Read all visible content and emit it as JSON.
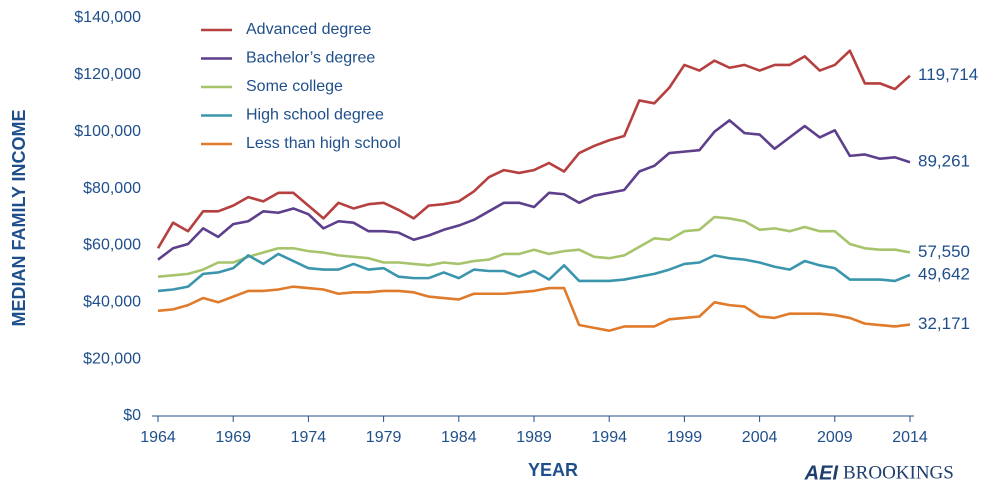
{
  "chart_data": {
    "type": "line",
    "x_label": "YEAR",
    "y_label": "MEDIAN FAMILY INCOME",
    "logos": [
      "AEI",
      "BROOKINGS"
    ],
    "x": [
      1964,
      1965,
      1966,
      1967,
      1968,
      1969,
      1970,
      1971,
      1972,
      1973,
      1974,
      1975,
      1976,
      1977,
      1978,
      1979,
      1980,
      1981,
      1982,
      1983,
      1984,
      1985,
      1986,
      1987,
      1988,
      1989,
      1990,
      1991,
      1992,
      1993,
      1994,
      1995,
      1996,
      1997,
      1998,
      1999,
      2000,
      2001,
      2002,
      2003,
      2004,
      2005,
      2006,
      2007,
      2008,
      2009,
      2010,
      2011,
      2012,
      2013,
      2014
    ],
    "xlim": [
      1964,
      2014
    ],
    "xticks": [
      1964,
      1969,
      1974,
      1979,
      1984,
      1989,
      1994,
      1999,
      2004,
      2009,
      2014
    ],
    "ylim": [
      0,
      140000
    ],
    "yticks": [
      {
        "value": 0,
        "label": "$0"
      },
      {
        "value": 20000,
        "label": "$20,000"
      },
      {
        "value": 40000,
        "label": "$40,000"
      },
      {
        "value": 60000,
        "label": "$60,000"
      },
      {
        "value": 80000,
        "label": "$80,000"
      },
      {
        "value": 100000,
        "label": "$100,000"
      },
      {
        "value": 120000,
        "label": "$120,000"
      },
      {
        "value": 140000,
        "label": "$140,000"
      }
    ],
    "grid": false,
    "legend": "upper-left",
    "series": [
      {
        "name": "Advanced degree",
        "color": "#b5403f",
        "values": [
          59000,
          68000,
          65000,
          72000,
          72000,
          74000,
          77000,
          75500,
          78500,
          78500,
          74000,
          69500,
          75000,
          73000,
          74500,
          75000,
          72500,
          69500,
          74000,
          74500,
          75500,
          79000,
          84000,
          86500,
          85500,
          86500,
          89000,
          86000,
          92500,
          95000,
          97000,
          98500,
          111000,
          110000,
          115500,
          123500,
          121500,
          125000,
          122500,
          123500,
          121500,
          123500,
          123500,
          126500,
          121500,
          123500,
          128500,
          117000,
          117000,
          115000,
          119714
        ],
        "value_labels": [
          null,
          null,
          null,
          null,
          null,
          null,
          null,
          null,
          null,
          null,
          null,
          null,
          null,
          null,
          null,
          null,
          null,
          null,
          null,
          null,
          null,
          null,
          null,
          null,
          null,
          null,
          null,
          null,
          null,
          null,
          null,
          null,
          null,
          null,
          null,
          null,
          null,
          null,
          null,
          null,
          null,
          null,
          null,
          null,
          null,
          null,
          null,
          null,
          null,
          null,
          "119,714"
        ]
      },
      {
        "name": "Bachelor’s degree",
        "color": "#5e3f8c",
        "values": [
          55000,
          59000,
          60500,
          66000,
          63000,
          67500,
          68500,
          72000,
          71500,
          73000,
          71000,
          66000,
          68500,
          68000,
          65000,
          65000,
          64500,
          62000,
          63500,
          65500,
          67000,
          69000,
          72000,
          75000,
          75000,
          73500,
          78500,
          78000,
          75000,
          77500,
          78500,
          79500,
          86000,
          88000,
          92500,
          93000,
          93500,
          100000,
          104000,
          99500,
          99000,
          94000,
          98000,
          102000,
          98000,
          100500,
          91500,
          92000,
          90500,
          91000,
          89261
        ],
        "value_labels": [
          null,
          null,
          null,
          null,
          null,
          null,
          null,
          null,
          null,
          null,
          null,
          null,
          null,
          null,
          null,
          null,
          null,
          null,
          null,
          null,
          null,
          null,
          null,
          null,
          null,
          null,
          null,
          null,
          null,
          null,
          null,
          null,
          null,
          null,
          null,
          null,
          null,
          null,
          null,
          null,
          null,
          null,
          null,
          null,
          null,
          null,
          null,
          null,
          null,
          null,
          "89,261"
        ]
      },
      {
        "name": "Some college",
        "color": "#a7c46c",
        "values": [
          49000,
          49500,
          50000,
          51500,
          54000,
          54000,
          56000,
          57500,
          59000,
          59000,
          58000,
          57500,
          56500,
          56000,
          55500,
          54000,
          54000,
          53500,
          53000,
          54000,
          53500,
          54500,
          55000,
          57000,
          57000,
          58500,
          57000,
          58000,
          58500,
          56000,
          55500,
          56500,
          59500,
          62500,
          62000,
          65000,
          65500,
          70000,
          69500,
          68500,
          65500,
          66000,
          65000,
          66500,
          65000,
          65000,
          60500,
          59000,
          58500,
          58500,
          57550
        ],
        "value_labels": [
          null,
          null,
          null,
          null,
          null,
          null,
          null,
          null,
          null,
          null,
          null,
          null,
          null,
          null,
          null,
          null,
          null,
          null,
          null,
          null,
          null,
          null,
          null,
          null,
          null,
          null,
          null,
          null,
          null,
          null,
          null,
          null,
          null,
          null,
          null,
          null,
          null,
          null,
          null,
          null,
          null,
          null,
          null,
          null,
          null,
          null,
          null,
          null,
          null,
          null,
          "57,550"
        ]
      },
      {
        "name": "High school degree",
        "color": "#3b96ad",
        "values": [
          44000,
          44500,
          45500,
          50000,
          50500,
          52000,
          56500,
          53500,
          57000,
          54500,
          52000,
          51500,
          51500,
          53500,
          51500,
          52000,
          49000,
          48500,
          48500,
          50500,
          48500,
          51500,
          51000,
          51000,
          49000,
          51000,
          48000,
          53000,
          47500,
          47500,
          47500,
          48000,
          49000,
          50000,
          51500,
          53500,
          54000,
          56500,
          55500,
          55000,
          54000,
          52500,
          51500,
          54500,
          53000,
          52000,
          48000,
          48000,
          48000,
          47500,
          49642
        ],
        "value_labels": [
          null,
          null,
          null,
          null,
          null,
          null,
          null,
          null,
          null,
          null,
          null,
          null,
          null,
          null,
          null,
          null,
          null,
          null,
          null,
          null,
          null,
          null,
          null,
          null,
          null,
          null,
          null,
          null,
          null,
          null,
          null,
          null,
          null,
          null,
          null,
          null,
          null,
          null,
          null,
          null,
          null,
          null,
          null,
          null,
          null,
          null,
          null,
          null,
          null,
          null,
          "49,642"
        ]
      },
      {
        "name": "Less than high school",
        "color": "#e07b2c",
        "values": [
          37000,
          37500,
          39000,
          41500,
          40000,
          42000,
          44000,
          44000,
          44500,
          45500,
          45000,
          44500,
          43000,
          43500,
          43500,
          44000,
          44000,
          43500,
          42000,
          41500,
          41000,
          43000,
          43000,
          43000,
          43500,
          44000,
          45000,
          45000,
          32000,
          31000,
          30000,
          31500,
          31500,
          31500,
          34000,
          34500,
          35000,
          40000,
          39000,
          38500,
          35000,
          34500,
          36000,
          36000,
          36000,
          35500,
          34500,
          32500,
          32000,
          31500,
          32171
        ],
        "value_labels": [
          null,
          null,
          null,
          null,
          null,
          null,
          null,
          null,
          null,
          null,
          null,
          null,
          null,
          null,
          null,
          null,
          null,
          null,
          null,
          null,
          null,
          null,
          null,
          null,
          null,
          null,
          null,
          null,
          null,
          null,
          null,
          null,
          null,
          null,
          null,
          null,
          null,
          null,
          null,
          null,
          null,
          null,
          null,
          null,
          null,
          null,
          null,
          null,
          null,
          null,
          "32,171"
        ]
      }
    ]
  }
}
